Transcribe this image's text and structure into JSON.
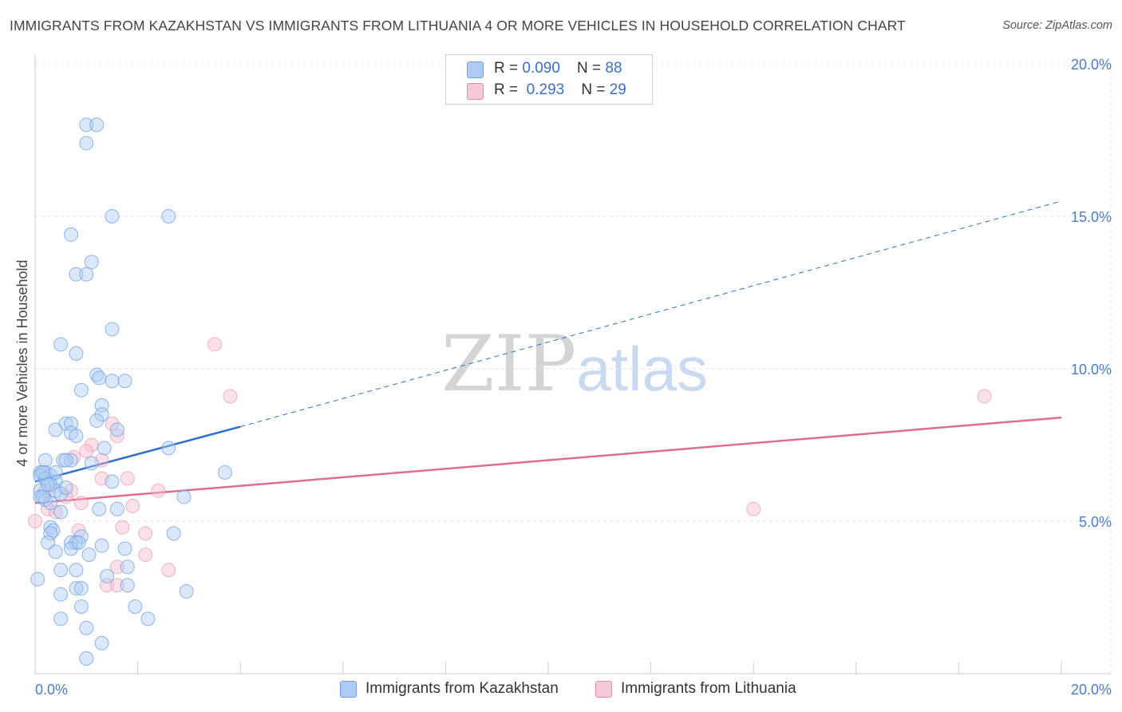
{
  "title": "IMMIGRANTS FROM KAZAKHSTAN VS IMMIGRANTS FROM LITHUANIA 4 OR MORE VEHICLES IN HOUSEHOLD CORRELATION CHART",
  "source": "Source: ZipAtlas.com",
  "watermark": {
    "zip": "ZIP",
    "atlas": "atlas"
  },
  "legend": {
    "rows": [
      {
        "r_label": "R = ",
        "r_value": "0.090",
        "n_label": "N = ",
        "n_value": "88",
        "color": "#aecbf5"
      },
      {
        "r_label": "R = ",
        "r_value": "0.293",
        "n_label": "N = ",
        "n_value": "29",
        "color": "#f5b8c9"
      }
    ]
  },
  "bottom_legend": {
    "kazakhstan": "Immigrants from Kazakhstan",
    "lithuania": "Immigrants from Lithuania"
  },
  "chart_data": {
    "type": "scatter",
    "title": "IMMIGRANTS FROM KAZAKHSTAN VS IMMIGRANTS FROM LITHUANIA 4 OR MORE VEHICLES IN HOUSEHOLD CORRELATION CHART",
    "xlabel": "",
    "ylabel": "4 or more Vehicles in Household",
    "xlim": [
      0,
      20
    ],
    "ylim": [
      0,
      20
    ],
    "x_tick_labels": [
      "0.0%",
      "20.0%"
    ],
    "y_ticks": [
      5,
      10,
      15,
      20
    ],
    "y_tick_labels": [
      "5.0%",
      "10.0%",
      "15.0%",
      "20.0%"
    ],
    "grid": true,
    "colors": {
      "kazakhstan": "#6f9fe0",
      "kazakhstan_fill": "#aecbf5",
      "lithuania": "#e88aa6",
      "lithuania_fill": "#f5bccb",
      "trend_blue": "#2d6fcc",
      "trend_pink": "#e06b95"
    },
    "series": [
      {
        "name": "Immigrants from Kazakhstan",
        "R": 0.09,
        "N": 88,
        "trend": {
          "x": [
            0,
            4
          ],
          "y": [
            6.3,
            8.1
          ],
          "extended_to": [
            20,
            15.5
          ]
        },
        "points": [
          [
            1.0,
            18.0
          ],
          [
            1.2,
            18.0
          ],
          [
            1.0,
            17.4
          ],
          [
            1.5,
            15.0
          ],
          [
            2.6,
            15.0
          ],
          [
            0.7,
            14.4
          ],
          [
            1.1,
            13.5
          ],
          [
            0.8,
            13.1
          ],
          [
            1.0,
            13.1
          ],
          [
            1.5,
            11.3
          ],
          [
            0.5,
            10.8
          ],
          [
            0.8,
            10.5
          ],
          [
            1.2,
            9.8
          ],
          [
            1.25,
            9.7
          ],
          [
            1.5,
            9.6
          ],
          [
            1.75,
            9.6
          ],
          [
            0.9,
            9.3
          ],
          [
            1.3,
            8.8
          ],
          [
            1.3,
            8.5
          ],
          [
            1.2,
            8.3
          ],
          [
            0.6,
            8.2
          ],
          [
            0.7,
            8.2
          ],
          [
            0.4,
            8.0
          ],
          [
            0.7,
            7.9
          ],
          [
            0.8,
            7.8
          ],
          [
            1.6,
            8.0
          ],
          [
            2.6,
            7.4
          ],
          [
            0.2,
            7.0
          ],
          [
            0.55,
            7.0
          ],
          [
            0.7,
            7.0
          ],
          [
            1.1,
            6.9
          ],
          [
            0.1,
            6.6
          ],
          [
            0.2,
            6.6
          ],
          [
            0.3,
            6.5
          ],
          [
            0.1,
            6.5
          ],
          [
            0.2,
            6.4
          ],
          [
            0.4,
            6.3
          ],
          [
            0.3,
            6.2
          ],
          [
            0.1,
            6.0
          ],
          [
            0.4,
            6.0
          ],
          [
            0.5,
            5.9
          ],
          [
            0.1,
            5.8
          ],
          [
            0.2,
            5.7
          ],
          [
            0.3,
            5.6
          ],
          [
            0.5,
            5.3
          ],
          [
            0.3,
            4.8
          ],
          [
            0.35,
            4.7
          ],
          [
            0.3,
            4.6
          ],
          [
            0.9,
            4.5
          ],
          [
            0.25,
            4.3
          ],
          [
            0.7,
            4.3
          ],
          [
            0.8,
            4.3
          ],
          [
            1.3,
            4.2
          ],
          [
            0.4,
            4.0
          ],
          [
            0.7,
            4.1
          ],
          [
            1.05,
            3.9
          ],
          [
            1.75,
            4.1
          ],
          [
            3.7,
            6.6
          ],
          [
            2.9,
            5.8
          ],
          [
            1.6,
            5.4
          ],
          [
            1.25,
            5.4
          ],
          [
            1.5,
            6.3
          ],
          [
            0.8,
            3.4
          ],
          [
            0.5,
            3.4
          ],
          [
            1.4,
            3.2
          ],
          [
            1.8,
            3.5
          ],
          [
            0.05,
            3.1
          ],
          [
            0.8,
            2.8
          ],
          [
            0.9,
            2.8
          ],
          [
            0.5,
            2.6
          ],
          [
            1.8,
            2.9
          ],
          [
            2.95,
            2.7
          ],
          [
            0.9,
            2.2
          ],
          [
            1.95,
            2.2
          ],
          [
            0.5,
            1.8
          ],
          [
            2.2,
            1.8
          ],
          [
            1.0,
            1.5
          ],
          [
            1.3,
            1.0
          ],
          [
            1.0,
            0.5
          ],
          [
            2.7,
            4.6
          ],
          [
            0.85,
            4.3
          ],
          [
            0.15,
            6.6
          ],
          [
            0.4,
            6.6
          ],
          [
            0.25,
            6.2
          ],
          [
            0.15,
            5.8
          ],
          [
            0.6,
            6.1
          ],
          [
            1.35,
            7.4
          ],
          [
            0.6,
            7.0
          ]
        ]
      },
      {
        "name": "Immigrants from Lithuania",
        "R": 0.293,
        "N": 29,
        "trend": {
          "x": [
            0,
            20
          ],
          "y": [
            5.6,
            8.4
          ]
        },
        "points": [
          [
            3.5,
            10.8
          ],
          [
            3.8,
            9.1
          ],
          [
            18.5,
            9.1
          ],
          [
            1.5,
            8.2
          ],
          [
            1.6,
            7.8
          ],
          [
            1.1,
            7.5
          ],
          [
            1.0,
            7.3
          ],
          [
            0.75,
            7.1
          ],
          [
            1.3,
            7.0
          ],
          [
            1.3,
            6.4
          ],
          [
            1.8,
            6.4
          ],
          [
            2.4,
            6.0
          ],
          [
            0.7,
            6.0
          ],
          [
            0.2,
            6.0
          ],
          [
            0.6,
            5.8
          ],
          [
            0.9,
            5.6
          ],
          [
            1.9,
            5.5
          ],
          [
            0.25,
            5.4
          ],
          [
            0.4,
            5.3
          ],
          [
            0.0,
            5.0
          ],
          [
            1.7,
            4.8
          ],
          [
            0.85,
            4.7
          ],
          [
            2.15,
            4.6
          ],
          [
            14.0,
            5.4
          ],
          [
            2.15,
            3.9
          ],
          [
            1.6,
            3.5
          ],
          [
            2.6,
            3.4
          ],
          [
            1.4,
            2.9
          ],
          [
            1.6,
            2.9
          ]
        ]
      }
    ]
  }
}
